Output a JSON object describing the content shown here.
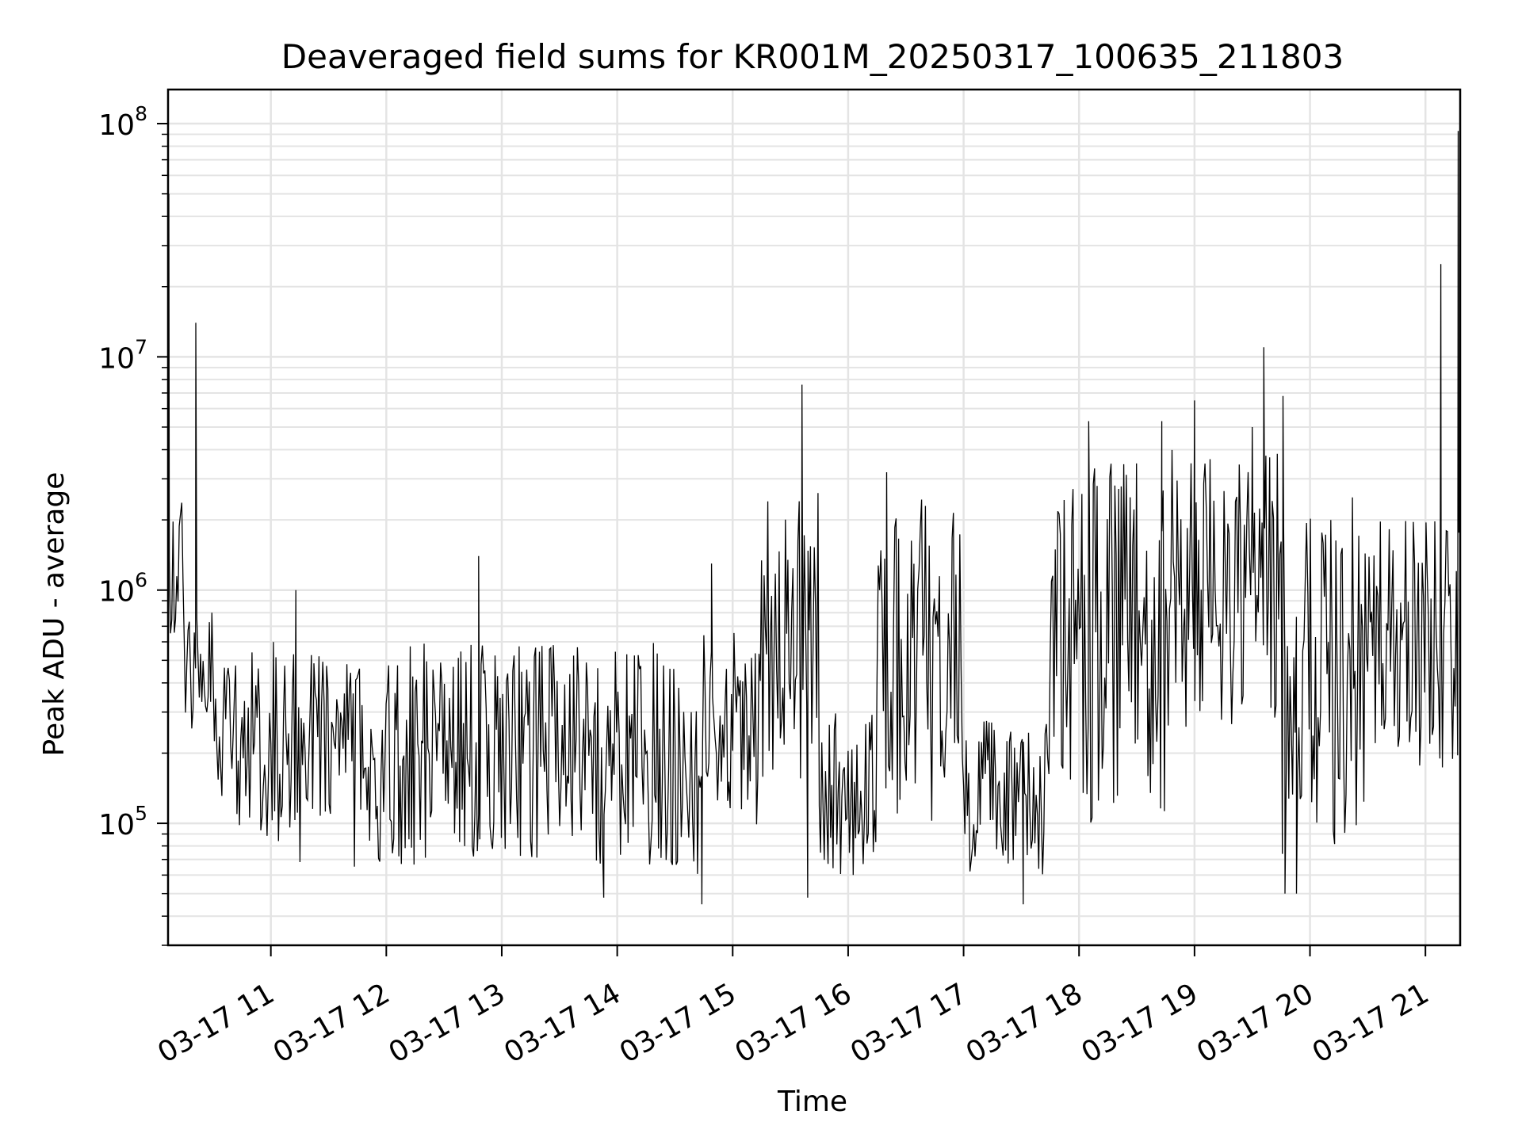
{
  "chart_data": {
    "type": "line",
    "title": "Deaveraged field sums for KR001M_20250317_100635_211803",
    "xlabel": "Time",
    "ylabel": "Peak ADU - average",
    "yscale": "log",
    "ylim": [
      30000,
      140000000
    ],
    "xlim": [
      "2025-03-17 10:06:35",
      "2025-03-17 21:18:03"
    ],
    "grid": true,
    "line_color": "#000000",
    "x_ticks": [
      {
        "at": "2025-03-17 11:00",
        "label": "03-17 11"
      },
      {
        "at": "2025-03-17 12:00",
        "label": "03-17 12"
      },
      {
        "at": "2025-03-17 13:00",
        "label": "03-17 13"
      },
      {
        "at": "2025-03-17 14:00",
        "label": "03-17 14"
      },
      {
        "at": "2025-03-17 15:00",
        "label": "03-17 15"
      },
      {
        "at": "2025-03-17 16:00",
        "label": "03-17 16"
      },
      {
        "at": "2025-03-17 17:00",
        "label": "03-17 17"
      },
      {
        "at": "2025-03-17 18:00",
        "label": "03-17 18"
      },
      {
        "at": "2025-03-17 19:00",
        "label": "03-17 19"
      },
      {
        "at": "2025-03-17 20:00",
        "label": "03-17 20"
      },
      {
        "at": "2025-03-17 21:00",
        "label": "03-17 21"
      }
    ],
    "y_ticks": [
      {
        "value": 100000,
        "base": "10",
        "exp": "5"
      },
      {
        "value": 1000000,
        "base": "10",
        "exp": "6"
      },
      {
        "value": 10000000,
        "base": "10",
        "exp": "7"
      },
      {
        "value": 100000000,
        "base": "10",
        "exp": "8"
      }
    ],
    "series": [
      {
        "segments": [
          {
            "start": "2025-03-17 10:06:35",
            "end": "2025-03-17 10:15",
            "low": 500000,
            "high": 2500000
          },
          {
            "start": "2025-03-17 10:15",
            "end": "2025-03-17 10:30",
            "low": 250000,
            "high": 800000
          },
          {
            "start": "2025-03-17 10:30",
            "end": "2025-03-17 11:00",
            "low": 80000,
            "high": 550000
          },
          {
            "start": "2025-03-17 11:00",
            "end": "2025-03-17 14:30",
            "low": 65000,
            "high": 600000
          },
          {
            "start": "2025-03-17 14:30",
            "end": "2025-03-17 14:45",
            "low": 55000,
            "high": 400000
          },
          {
            "start": "2025-03-17 14:45",
            "end": "2025-03-17 15:15",
            "low": 90000,
            "high": 700000
          },
          {
            "start": "2025-03-17 15:15",
            "end": "2025-03-17 15:45",
            "low": 120000,
            "high": 2800000
          },
          {
            "start": "2025-03-17 15:45",
            "end": "2025-03-17 16:15",
            "low": 60000,
            "high": 300000
          },
          {
            "start": "2025-03-17 16:15",
            "end": "2025-03-17 17:00",
            "low": 100000,
            "high": 2500000
          },
          {
            "start": "2025-03-17 17:00",
            "end": "2025-03-17 17:45",
            "low": 60000,
            "high": 280000
          },
          {
            "start": "2025-03-17 17:45",
            "end": "2025-03-17 18:45",
            "low": 90000,
            "high": 3500000
          },
          {
            "start": "2025-03-17 18:45",
            "end": "2025-03-17 19:45",
            "low": 200000,
            "high": 4000000
          },
          {
            "start": "2025-03-17 19:45",
            "end": "2025-03-17 20:30",
            "low": 70000,
            "high": 2500000
          },
          {
            "start": "2025-03-17 20:30",
            "end": "2025-03-17 21:18:03",
            "low": 150000,
            "high": 2000000
          }
        ],
        "spikes": [
          {
            "t": "2025-03-17 10:07",
            "value": 50000000
          },
          {
            "t": "2025-03-17 10:21",
            "value": 14000000
          },
          {
            "t": "2025-03-17 11:13",
            "value": 1000000
          },
          {
            "t": "2025-03-17 12:48",
            "value": 1400000
          },
          {
            "t": "2025-03-17 13:53",
            "value": 48000
          },
          {
            "t": "2025-03-17 14:44",
            "value": 45000
          },
          {
            "t": "2025-03-17 14:49",
            "value": 1300000
          },
          {
            "t": "2025-03-17 15:36",
            "value": 7600000
          },
          {
            "t": "2025-03-17 15:39",
            "value": 48000
          },
          {
            "t": "2025-03-17 16:20",
            "value": 3200000
          },
          {
            "t": "2025-03-17 17:31",
            "value": 45000
          },
          {
            "t": "2025-03-17 18:05",
            "value": 5300000
          },
          {
            "t": "2025-03-17 18:43",
            "value": 5300000
          },
          {
            "t": "2025-03-17 19:00",
            "value": 6500000
          },
          {
            "t": "2025-03-17 19:30",
            "value": 5000000
          },
          {
            "t": "2025-03-17 19:36",
            "value": 11000000
          },
          {
            "t": "2025-03-17 19:46",
            "value": 6800000
          },
          {
            "t": "2025-03-17 19:47",
            "value": 50000
          },
          {
            "t": "2025-03-17 19:53",
            "value": 50000
          },
          {
            "t": "2025-03-17 21:08",
            "value": 25000000
          },
          {
            "t": "2025-03-17 21:17",
            "value": 93000000
          }
        ]
      }
    ]
  }
}
